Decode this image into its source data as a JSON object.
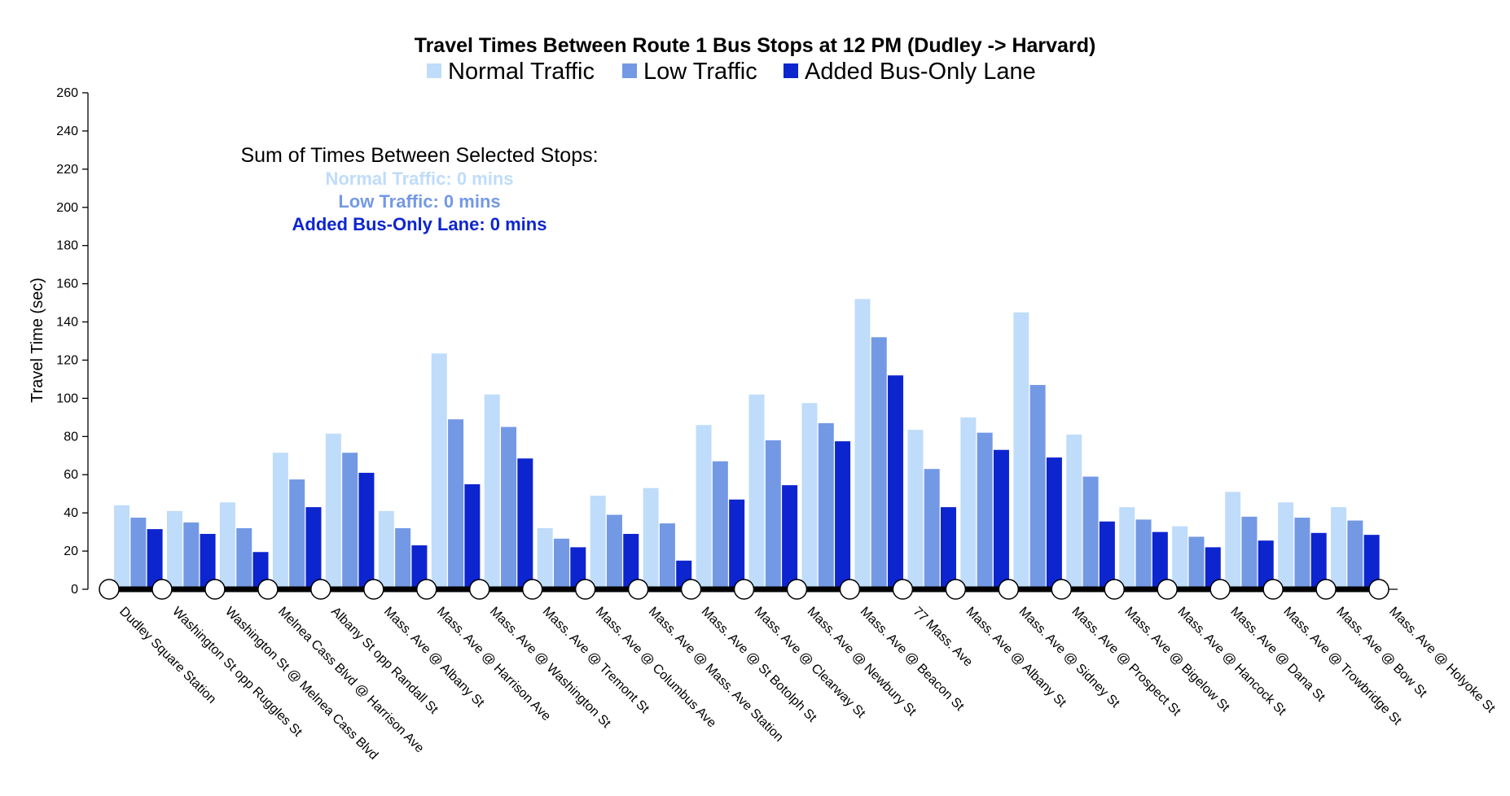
{
  "chart_data": {
    "type": "bar",
    "title": "Travel Times Between Route 1 Bus Stops at 12 PM (Dudley -> Harvard)",
    "ylabel": "Travel Time (sec)",
    "xlabel": "",
    "ylim": [
      0,
      260
    ],
    "yticks": [
      0,
      20,
      40,
      60,
      80,
      100,
      120,
      140,
      160,
      180,
      200,
      220,
      240,
      260
    ],
    "legend_position": "top-center",
    "grid": false,
    "stops": [
      "Dudley Square Station",
      "Washington St opp Ruggles St",
      "Washington St @ Melnea Cass Blvd",
      "Melnea Cass Blvd @ Harrison Ave",
      "Albany St opp Randall St",
      "Mass. Ave @ Albany St",
      "Mass. Ave @ Harrison Ave",
      "Mass. Ave @ Washington St",
      "Mass. Ave @ Tremont St",
      "Mass. Ave @ Columbus Ave",
      "Mass. Ave @ Mass. Ave Station",
      "Mass. Ave @ St Botolph St",
      "Mass. Ave @ Clearway St",
      "Mass. Ave @ Newbury St",
      "Mass. Ave @ Beacon St",
      "77 Mass. Ave",
      "Mass. Ave @ Albany St",
      "Mass. Ave @ Sidney St",
      "Mass. Ave @ Prospect St",
      "Mass. Ave @ Bigelow St",
      "Mass. Ave @ Hancock St",
      "Mass. Ave @ Dana St",
      "Mass. Ave @ Trowbridge St",
      "Mass. Ave @ Bow St",
      "Mass. Ave @ Holyoke St"
    ],
    "series": [
      {
        "name": "Normal Traffic",
        "color": "#bfdcfa",
        "values": [
          44,
          41,
          45.5,
          71.5,
          81.5,
          41,
          123.5,
          102,
          32,
          49,
          53,
          86,
          102,
          97.5,
          152,
          83.5,
          90,
          145,
          81,
          43,
          33,
          51,
          45.5,
          43
        ]
      },
      {
        "name": "Low Traffic",
        "color": "#7399e5",
        "values": [
          37.5,
          35,
          32,
          57.5,
          71.5,
          32,
          89,
          85,
          26.5,
          39,
          34.5,
          67,
          78,
          87,
          132,
          63,
          82,
          107,
          59,
          36.5,
          27.5,
          38,
          37.5,
          36
        ]
      },
      {
        "name": "Added Bus-Only Lane",
        "color": "#0d25cf",
        "values": [
          31.5,
          29,
          19.5,
          43,
          61,
          23,
          55,
          68.5,
          22,
          29,
          15,
          47,
          54.5,
          77.5,
          112,
          43,
          73,
          69,
          35.5,
          30,
          22,
          25.5,
          29.5,
          28.5
        ]
      }
    ]
  },
  "summary": {
    "heading": "Sum of Times Between Selected Stops:",
    "lines": [
      {
        "text": "Normal Traffic: 0 mins",
        "color": "#bfdcfa"
      },
      {
        "text": "Low Traffic: 0 mins",
        "color": "#7399e5"
      },
      {
        "text": "Added Bus-Only Lane: 0 mins",
        "color": "#0d25cf"
      }
    ]
  }
}
